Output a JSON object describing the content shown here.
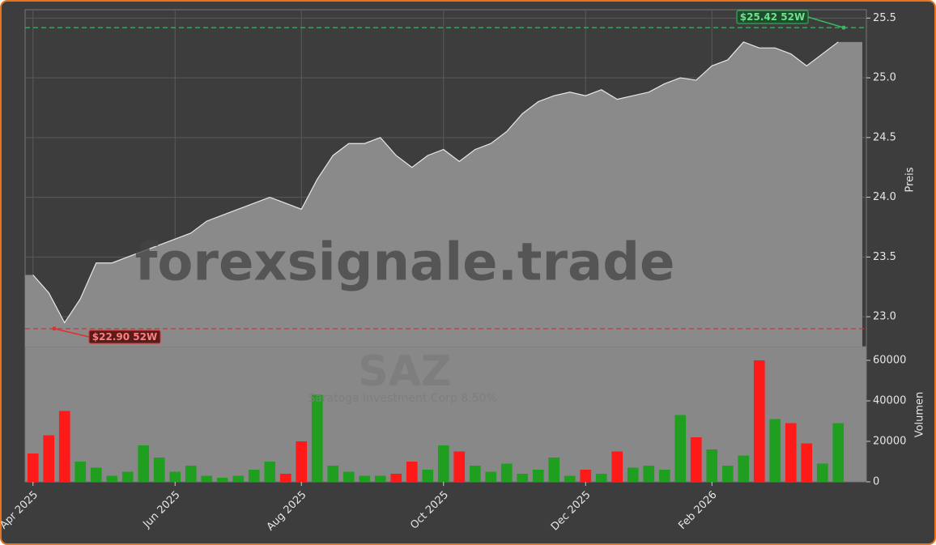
{
  "chart_data": {
    "type": "area-volume",
    "watermark": "forexsignale.trade",
    "symbol": "SAZ",
    "subtitle": "Saratoga Investment Corp 8.50%",
    "y_label": "Preis",
    "y2_label": "Volumen",
    "categories": [
      "Apr 2025",
      null,
      null,
      null,
      null,
      null,
      null,
      null,
      null,
      "Jun 2025",
      null,
      null,
      null,
      null,
      null,
      null,
      null,
      "Aug 2025",
      null,
      null,
      null,
      null,
      null,
      null,
      null,
      null,
      "Oct 2025",
      null,
      null,
      null,
      null,
      null,
      null,
      null,
      null,
      "Dec 2025",
      null,
      null,
      null,
      null,
      null,
      null,
      null,
      "Feb 2026",
      null,
      null,
      null,
      null,
      null,
      null,
      null,
      null
    ],
    "series": [
      {
        "name": "Preis",
        "color": "#8a8a8a",
        "line_color": "#e8e8e8",
        "values": [
          23.35,
          23.2,
          22.95,
          23.15,
          23.45,
          23.45,
          23.5,
          23.55,
          23.6,
          23.65,
          23.7,
          23.8,
          23.85,
          23.9,
          23.95,
          24.0,
          23.95,
          23.9,
          24.15,
          24.35,
          24.45,
          24.45,
          24.5,
          24.35,
          24.25,
          24.35,
          24.4,
          24.3,
          24.4,
          24.45,
          24.55,
          24.7,
          24.8,
          24.85,
          24.88,
          24.85,
          24.9,
          24.82,
          24.85,
          24.88,
          24.95,
          25.0,
          24.98,
          25.1,
          25.15,
          25.3,
          25.25,
          25.25,
          25.2,
          25.1,
          25.2,
          25.3
        ]
      },
      {
        "name": "Volumen",
        "axis": "y2",
        "up_color": "#1f9e1f",
        "down_color": "#ff1a1a",
        "values": [
          14000,
          23000,
          35000,
          10000,
          7000,
          3000,
          5000,
          18000,
          12000,
          5000,
          8000,
          3000,
          2000,
          3000,
          6000,
          10000,
          4000,
          20000,
          43000,
          8000,
          5000,
          3000,
          3000,
          4000,
          10000,
          6000,
          18000,
          15000,
          8000,
          5000,
          9000,
          4000,
          6000,
          12000,
          3000,
          6000,
          4000,
          15000,
          7000,
          8000,
          6000,
          33000,
          22000,
          16000,
          8000,
          13000,
          60000,
          31000,
          29000,
          19000,
          9000,
          29000
        ]
      }
    ],
    "high": {
      "value": 25.42,
      "label": "$25.42 52W",
      "color": "#3cb864"
    },
    "low": {
      "value": 22.9,
      "label": "$22.90 52W",
      "color": "#e03030"
    },
    "ylim": [
      22.75,
      25.57
    ],
    "yticks": [
      {
        "value": 23,
        "label": "23.0"
      },
      23.5,
      {
        "value": 24,
        "label": "24.0"
      },
      24.5,
      {
        "value": 25,
        "label": "25.0"
      },
      25.5
    ],
    "y2lim": [
      0,
      66800
    ],
    "y2ticks": [
      0,
      20000,
      40000,
      60000
    ],
    "grid": true
  }
}
